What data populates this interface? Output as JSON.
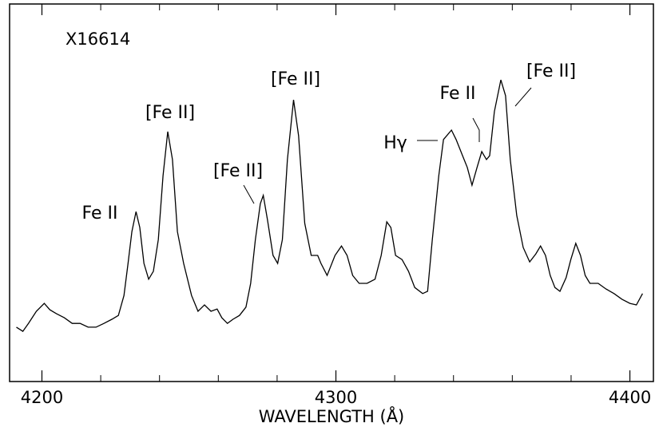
{
  "chart_data": {
    "type": "line",
    "label": "X16614",
    "xlabel": "WAVELENGTH (Å)",
    "annotations": [
      "Fe II",
      "[Fe II]",
      "[Fe II]",
      "[Fe II]",
      "Hγ",
      "Fe II",
      "[Fe II]"
    ],
    "xlim": [
      4189,
      4408
    ],
    "ylim": [
      0,
      100
    ],
    "xticks": [
      4200,
      4300,
      4400
    ],
    "xminorticks": [
      4220,
      4240,
      4260,
      4280,
      4320,
      4340,
      4360,
      4380
    ],
    "color": "#000000",
    "x": [
      4191.3,
      4193.5,
      4195.4,
      4198.1,
      4200.8,
      4202.7,
      4204.9,
      4207.6,
      4210.3,
      4213.0,
      4215.7,
      4218.4,
      4221.1,
      4223.8,
      4226.0,
      4227.9,
      4229.3,
      4230.6,
      4232.0,
      4233.3,
      4234.7,
      4236.3,
      4237.9,
      4239.6,
      4241.2,
      4242.8,
      4244.4,
      4246.1,
      4248.2,
      4250.9,
      4253.1,
      4255.3,
      4257.5,
      4259.6,
      4261.2,
      4263.1,
      4265.0,
      4267.2,
      4269.4,
      4271.0,
      4272.6,
      4274.3,
      4275.3,
      4276.7,
      4278.6,
      4280.2,
      4281.8,
      4283.5,
      4285.6,
      4287.3,
      4289.4,
      4291.6,
      4293.8,
      4294.9,
      4297.0,
      4299.7,
      4301.9,
      4303.8,
      4305.7,
      4307.9,
      4310.6,
      4313.3,
      4315.4,
      4317.3,
      4318.7,
      4320.3,
      4322.5,
      4324.7,
      4326.8,
      4329.5,
      4331.2,
      4332.8,
      4335.0,
      4336.6,
      4339.3,
      4340.9,
      4343.1,
      4344.7,
      4346.3,
      4348.0,
      4349.6,
      4351.2,
      4352.3,
      4353.9,
      4356.1,
      4357.7,
      4359.3,
      4361.5,
      4363.7,
      4365.9,
      4368.0,
      4369.6,
      4371.3,
      4372.9,
      4374.5,
      4376.2,
      4378.3,
      4379.9,
      4381.6,
      4383.2,
      4384.8,
      4386.4,
      4389.2,
      4391.9,
      4394.6,
      4397.3,
      4400.0,
      4402.2,
      4404.3
    ],
    "values": [
      14.4,
      13.3,
      15.4,
      18.6,
      20.7,
      19.0,
      18.0,
      16.9,
      15.4,
      15.4,
      14.4,
      14.4,
      15.4,
      16.5,
      17.5,
      22.8,
      31.3,
      39.7,
      45.0,
      40.8,
      31.3,
      27.1,
      29.2,
      37.6,
      54.5,
      66.2,
      58.8,
      39.7,
      31.3,
      22.8,
      18.6,
      20.3,
      18.6,
      19.2,
      16.9,
      15.4,
      16.5,
      17.5,
      19.7,
      26.0,
      37.6,
      47.1,
      49.3,
      42.9,
      33.4,
      31.3,
      37.6,
      58.8,
      74.6,
      65.1,
      41.9,
      33.4,
      33.4,
      31.3,
      28.1,
      33.4,
      35.9,
      33.4,
      28.1,
      26.0,
      26.0,
      27.1,
      33.4,
      42.3,
      40.8,
      33.4,
      32.3,
      29.2,
      24.9,
      23.3,
      23.9,
      37.6,
      54.5,
      64.1,
      66.6,
      64.1,
      59.8,
      56.7,
      52.0,
      56.7,
      60.9,
      58.8,
      59.8,
      71.5,
      79.9,
      75.7,
      58.8,
      44.0,
      35.5,
      31.7,
      33.8,
      35.9,
      33.4,
      28.1,
      24.9,
      23.9,
      27.5,
      32.3,
      36.6,
      33.4,
      28.1,
      26.0,
      26.0,
      24.5,
      23.3,
      21.8,
      20.7,
      20.3,
      23.3
    ]
  }
}
